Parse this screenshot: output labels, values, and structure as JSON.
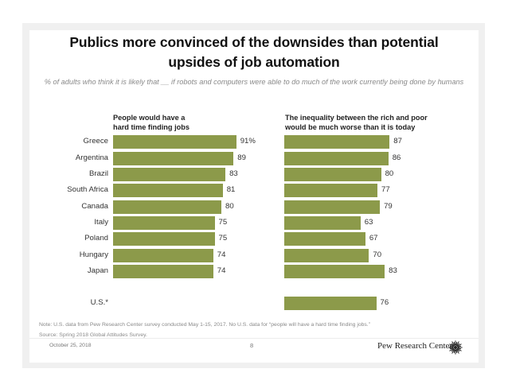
{
  "colors": {
    "bar": "#8c9a4a",
    "frame": "#f0f0f0"
  },
  "title": "Publics more convinced of the downsides than potential upsides of job automation",
  "title_lines": [
    "Publics more convinced of the downsides than potential",
    "upsides of job automation"
  ],
  "subtitle": "% of adults who think it is likely that __ if robots and computers were able to do much of the work currently being done by humans",
  "chart_data": [
    {
      "type": "bar",
      "orientation": "horizontal",
      "title": "People would have a hard time finding jobs",
      "title_lines": [
        "People would have a",
        "hard time finding jobs"
      ],
      "categories": [
        "Greece",
        "Argentina",
        "Brazil",
        "South Africa",
        "Canada",
        "Italy",
        "Poland",
        "Hungary",
        "Japan",
        "U.S.*"
      ],
      "values": [
        91,
        89,
        83,
        81,
        80,
        75,
        75,
        74,
        74,
        null
      ],
      "value_labels": [
        "91%",
        "89",
        "83",
        "81",
        "80",
        "75",
        "75",
        "74",
        "74",
        ""
      ],
      "xlim": [
        0,
        100
      ],
      "grid": false,
      "legend": "none"
    },
    {
      "type": "bar",
      "orientation": "horizontal",
      "title": "The inequality between the rich and poor would be much worse than it is today",
      "title_lines": [
        "The inequality between the rich and poor",
        "would be much worse than it is today"
      ],
      "categories": [
        "Greece",
        "Argentina",
        "Brazil",
        "South Africa",
        "Canada",
        "Italy",
        "Poland",
        "Hungary",
        "Japan",
        "U.S.*"
      ],
      "values": [
        87,
        86,
        80,
        77,
        79,
        63,
        67,
        70,
        83,
        76
      ],
      "value_labels": [
        "87",
        "86",
        "80",
        "77",
        "79",
        "63",
        "67",
        "70",
        "83",
        "76"
      ],
      "xlim": [
        0,
        100
      ],
      "grid": false,
      "legend": "none"
    }
  ],
  "notes": {
    "note": "Note: U.S. data from Pew Research Center survey conducted May 1-15, 2017. No U.S. data for “people will have a hard time finding jobs.”",
    "source": "Source: Spring 2018 Global Attitudes Survey."
  },
  "footer": {
    "date": "October 25, 2018",
    "page": "8",
    "brand": "Pew Research Center",
    "brand_icon": "pew-sunburst-logo-icon"
  }
}
